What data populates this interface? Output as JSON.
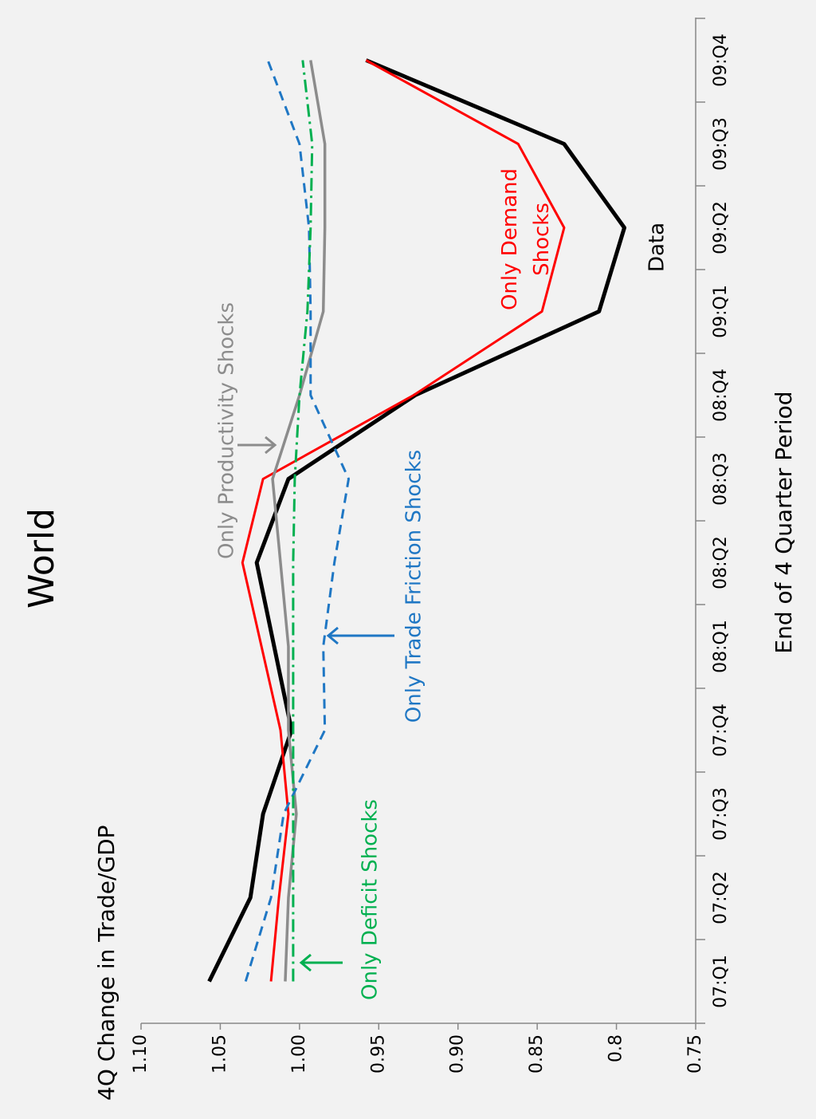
{
  "chart_data": {
    "type": "line",
    "title": "World",
    "y_label": "4Q Change in Trade/GDP",
    "x_label": "End of 4 Quarter Period",
    "categories": [
      "07:Q1",
      "07:Q2",
      "07:Q3",
      "07:Q4",
      "08:Q1",
      "08:Q2",
      "08:Q3",
      "08:Q4",
      "09:Q1",
      "09:Q2",
      "09:Q3",
      "09:Q4"
    ],
    "ylim": [
      0.75,
      1.1
    ],
    "yticks": [
      {
        "value": 1.1,
        "label": "1.10"
      },
      1.05,
      {
        "value": 1.0,
        "label": "1.00"
      },
      0.95,
      {
        "value": 0.9,
        "label": "0.90"
      },
      0.85,
      0.8,
      0.75
    ],
    "rotated": true,
    "series": [
      {
        "name": "Data",
        "color": "#000000",
        "values": [
          1.057,
          1.031,
          1.023,
          1.005,
          1.016,
          1.027,
          1.007,
          0.927,
          0.811,
          0.795,
          0.833,
          0.958
        ]
      },
      {
        "name": "Only Demand Shocks",
        "color": "#ff0000",
        "values": [
          1.018,
          1.013,
          1.007,
          1.012,
          1.024,
          1.036,
          1.023,
          0.928,
          0.847,
          0.833,
          0.862,
          0.958
        ]
      },
      {
        "name": "Only Productivity Shocks",
        "color": "#8c8c8c",
        "values": [
          1.009,
          1.007,
          1.002,
          1.007,
          1.007,
          1.012,
          1.017,
          1.0,
          0.985,
          0.984,
          0.984,
          0.993
        ]
      },
      {
        "name": "Only Trade Friction Shocks",
        "color": "#1f77c4",
        "values": [
          1.034,
          1.018,
          1.01,
          0.984,
          0.985,
          0.978,
          0.969,
          0.993,
          0.993,
          0.994,
          1.0,
          1.02
        ]
      },
      {
        "name": "Only Deficit Shocks",
        "color": "#00b050",
        "values": [
          1.004,
          1.004,
          1.004,
          1.004,
          1.004,
          1.004,
          1.003,
          1.0,
          0.995,
          0.993,
          0.992,
          0.998
        ]
      }
    ]
  }
}
